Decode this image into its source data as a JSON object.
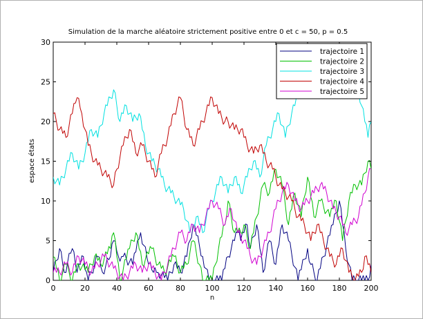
{
  "chart_data": {
    "type": "line",
    "title": "Simulation de la marche aléatoire strictement positive entre 0 et c = 50, p = 0.5",
    "xlabel": "n",
    "ylabel": "espace états",
    "xlim": [
      0,
      200
    ],
    "ylim": [
      0,
      30
    ],
    "xticks": [
      "0",
      "20",
      "40",
      "60",
      "80",
      "100",
      "120",
      "140",
      "160",
      "180",
      "200"
    ],
    "yticks": [
      "0",
      "5",
      "10",
      "15",
      "20",
      "25",
      "30"
    ],
    "grid": false,
    "legend_position": "top-right",
    "series": [
      {
        "name": "trajectoire 1",
        "color": "#000080",
        "knots": [
          [
            0,
            1
          ],
          [
            4,
            4
          ],
          [
            7,
            1
          ],
          [
            12,
            4
          ],
          [
            15,
            1
          ],
          [
            19,
            3
          ],
          [
            22,
            0
          ],
          [
            28,
            3
          ],
          [
            31,
            1
          ],
          [
            36,
            3
          ],
          [
            38,
            5
          ],
          [
            41,
            3
          ],
          [
            44,
            3
          ],
          [
            50,
            2
          ],
          [
            55,
            6
          ],
          [
            60,
            2
          ],
          [
            63,
            1
          ],
          [
            66,
            1
          ],
          [
            72,
            0
          ],
          [
            76,
            2
          ],
          [
            80,
            1
          ],
          [
            84,
            3
          ],
          [
            88,
            7
          ],
          [
            94,
            3
          ],
          [
            98,
            0
          ],
          [
            106,
            0
          ],
          [
            110,
            3
          ],
          [
            116,
            6
          ],
          [
            118,
            5
          ],
          [
            122,
            7
          ],
          [
            124,
            4
          ],
          [
            128,
            7
          ],
          [
            132,
            1
          ],
          [
            136,
            5
          ],
          [
            140,
            2
          ],
          [
            144,
            7
          ],
          [
            148,
            5
          ],
          [
            154,
            0
          ],
          [
            160,
            4
          ],
          [
            162,
            2
          ],
          [
            166,
            0
          ],
          [
            170,
            3
          ],
          [
            176,
            7
          ],
          [
            180,
            10
          ],
          [
            184,
            4
          ],
          [
            188,
            0
          ],
          [
            194,
            0
          ],
          [
            198,
            0
          ],
          [
            200,
            2
          ]
        ]
      },
      {
        "name": "trajectoire 2",
        "color": "#00c000",
        "knots": [
          [
            0,
            3
          ],
          [
            4,
            0
          ],
          [
            8,
            2
          ],
          [
            12,
            0
          ],
          [
            16,
            2
          ],
          [
            22,
            1
          ],
          [
            26,
            3
          ],
          [
            30,
            2
          ],
          [
            36,
            4
          ],
          [
            38,
            6
          ],
          [
            42,
            0
          ],
          [
            48,
            4
          ],
          [
            52,
            6
          ],
          [
            56,
            2
          ],
          [
            62,
            4
          ],
          [
            66,
            2
          ],
          [
            70,
            1
          ],
          [
            76,
            3
          ],
          [
            80,
            1
          ],
          [
            84,
            2
          ],
          [
            88,
            5
          ],
          [
            92,
            2
          ],
          [
            94,
            0
          ],
          [
            100,
            0
          ],
          [
            104,
            4
          ],
          [
            108,
            7
          ],
          [
            110,
            10
          ],
          [
            114,
            6
          ],
          [
            118,
            6
          ],
          [
            120,
            7
          ],
          [
            124,
            4
          ],
          [
            128,
            8
          ],
          [
            132,
            12
          ],
          [
            136,
            11
          ],
          [
            140,
            14
          ],
          [
            144,
            12
          ],
          [
            148,
            7
          ],
          [
            152,
            11
          ],
          [
            156,
            8
          ],
          [
            160,
            13
          ],
          [
            164,
            8
          ],
          [
            168,
            10
          ],
          [
            174,
            8
          ],
          [
            178,
            10
          ],
          [
            182,
            5
          ],
          [
            186,
            10
          ],
          [
            190,
            12
          ],
          [
            194,
            12
          ],
          [
            198,
            15
          ],
          [
            200,
            14
          ]
        ]
      },
      {
        "name": "trajectoire 3",
        "color": "#00e0e0",
        "knots": [
          [
            0,
            13
          ],
          [
            4,
            12
          ],
          [
            8,
            14
          ],
          [
            12,
            16
          ],
          [
            16,
            14
          ],
          [
            20,
            16
          ],
          [
            24,
            19
          ],
          [
            28,
            18
          ],
          [
            32,
            21
          ],
          [
            36,
            23
          ],
          [
            38,
            24
          ],
          [
            42,
            20
          ],
          [
            46,
            22
          ],
          [
            50,
            20
          ],
          [
            54,
            21
          ],
          [
            58,
            17
          ],
          [
            62,
            15
          ],
          [
            66,
            14
          ],
          [
            70,
            12
          ],
          [
            74,
            11
          ],
          [
            78,
            10
          ],
          [
            82,
            9
          ],
          [
            86,
            6
          ],
          [
            90,
            8
          ],
          [
            94,
            6
          ],
          [
            98,
            9
          ],
          [
            102,
            11
          ],
          [
            106,
            13
          ],
          [
            110,
            11
          ],
          [
            114,
            13
          ],
          [
            118,
            11
          ],
          [
            122,
            13
          ],
          [
            126,
            15
          ],
          [
            130,
            13
          ],
          [
            134,
            17
          ],
          [
            138,
            19
          ],
          [
            142,
            21
          ],
          [
            146,
            18
          ],
          [
            150,
            21
          ],
          [
            154,
            23
          ],
          [
            156,
            26
          ],
          [
            160,
            27
          ],
          [
            164,
            28
          ],
          [
            168,
            29
          ],
          [
            172,
            29
          ],
          [
            176,
            28
          ],
          [
            182,
            26
          ],
          [
            188,
            24
          ],
          [
            192,
            24
          ],
          [
            196,
            20
          ],
          [
            198,
            18
          ],
          [
            200,
            20
          ]
        ]
      },
      {
        "name": "trajectoire 4",
        "color": "#c00000",
        "knots": [
          [
            0,
            21
          ],
          [
            4,
            19
          ],
          [
            8,
            18
          ],
          [
            12,
            21
          ],
          [
            15,
            23
          ],
          [
            18,
            21
          ],
          [
            22,
            17
          ],
          [
            26,
            15
          ],
          [
            30,
            14
          ],
          [
            34,
            13
          ],
          [
            38,
            12
          ],
          [
            40,
            14
          ],
          [
            44,
            17
          ],
          [
            48,
            19
          ],
          [
            52,
            16
          ],
          [
            56,
            17
          ],
          [
            60,
            15
          ],
          [
            64,
            13
          ],
          [
            68,
            16
          ],
          [
            72,
            18
          ],
          [
            76,
            21
          ],
          [
            80,
            23
          ],
          [
            84,
            19
          ],
          [
            88,
            17
          ],
          [
            92,
            19
          ],
          [
            96,
            21
          ],
          [
            100,
            23
          ],
          [
            104,
            21
          ],
          [
            108,
            20
          ],
          [
            110,
            20
          ],
          [
            114,
            19
          ],
          [
            118,
            19
          ],
          [
            122,
            17
          ],
          [
            126,
            16
          ],
          [
            130,
            17
          ],
          [
            134,
            15
          ],
          [
            138,
            14
          ],
          [
            142,
            12
          ],
          [
            146,
            11
          ],
          [
            150,
            10
          ],
          [
            154,
            8
          ],
          [
            158,
            7
          ],
          [
            162,
            5
          ],
          [
            166,
            7
          ],
          [
            170,
            5
          ],
          [
            174,
            3
          ],
          [
            178,
            2
          ],
          [
            182,
            4
          ],
          [
            186,
            1
          ],
          [
            190,
            0
          ],
          [
            194,
            1
          ],
          [
            196,
            3
          ],
          [
            198,
            2
          ],
          [
            200,
            1
          ]
        ]
      },
      {
        "name": "trajectoire 5",
        "color": "#d000d0",
        "knots": [
          [
            0,
            1
          ],
          [
            4,
            1
          ],
          [
            8,
            2
          ],
          [
            12,
            1
          ],
          [
            16,
            3
          ],
          [
            20,
            2
          ],
          [
            24,
            1
          ],
          [
            28,
            2
          ],
          [
            32,
            3
          ],
          [
            36,
            2
          ],
          [
            40,
            1
          ],
          [
            44,
            0
          ],
          [
            48,
            1
          ],
          [
            52,
            2
          ],
          [
            56,
            1
          ],
          [
            60,
            2
          ],
          [
            64,
            1
          ],
          [
            68,
            0
          ],
          [
            72,
            2
          ],
          [
            76,
            4
          ],
          [
            80,
            6
          ],
          [
            84,
            5
          ],
          [
            88,
            7
          ],
          [
            92,
            6
          ],
          [
            96,
            8
          ],
          [
            100,
            10
          ],
          [
            104,
            9
          ],
          [
            108,
            7
          ],
          [
            112,
            9
          ],
          [
            116,
            6
          ],
          [
            120,
            5
          ],
          [
            124,
            3
          ],
          [
            128,
            2
          ],
          [
            132,
            4
          ],
          [
            136,
            6
          ],
          [
            140,
            9
          ],
          [
            144,
            11
          ],
          [
            148,
            12
          ],
          [
            152,
            10
          ],
          [
            156,
            9
          ],
          [
            160,
            10
          ],
          [
            164,
            11
          ],
          [
            168,
            12
          ],
          [
            172,
            11
          ],
          [
            176,
            9
          ],
          [
            180,
            8
          ],
          [
            184,
            6
          ],
          [
            188,
            7
          ],
          [
            192,
            8
          ],
          [
            196,
            11
          ],
          [
            198,
            13
          ],
          [
            200,
            14
          ]
        ]
      }
    ]
  }
}
